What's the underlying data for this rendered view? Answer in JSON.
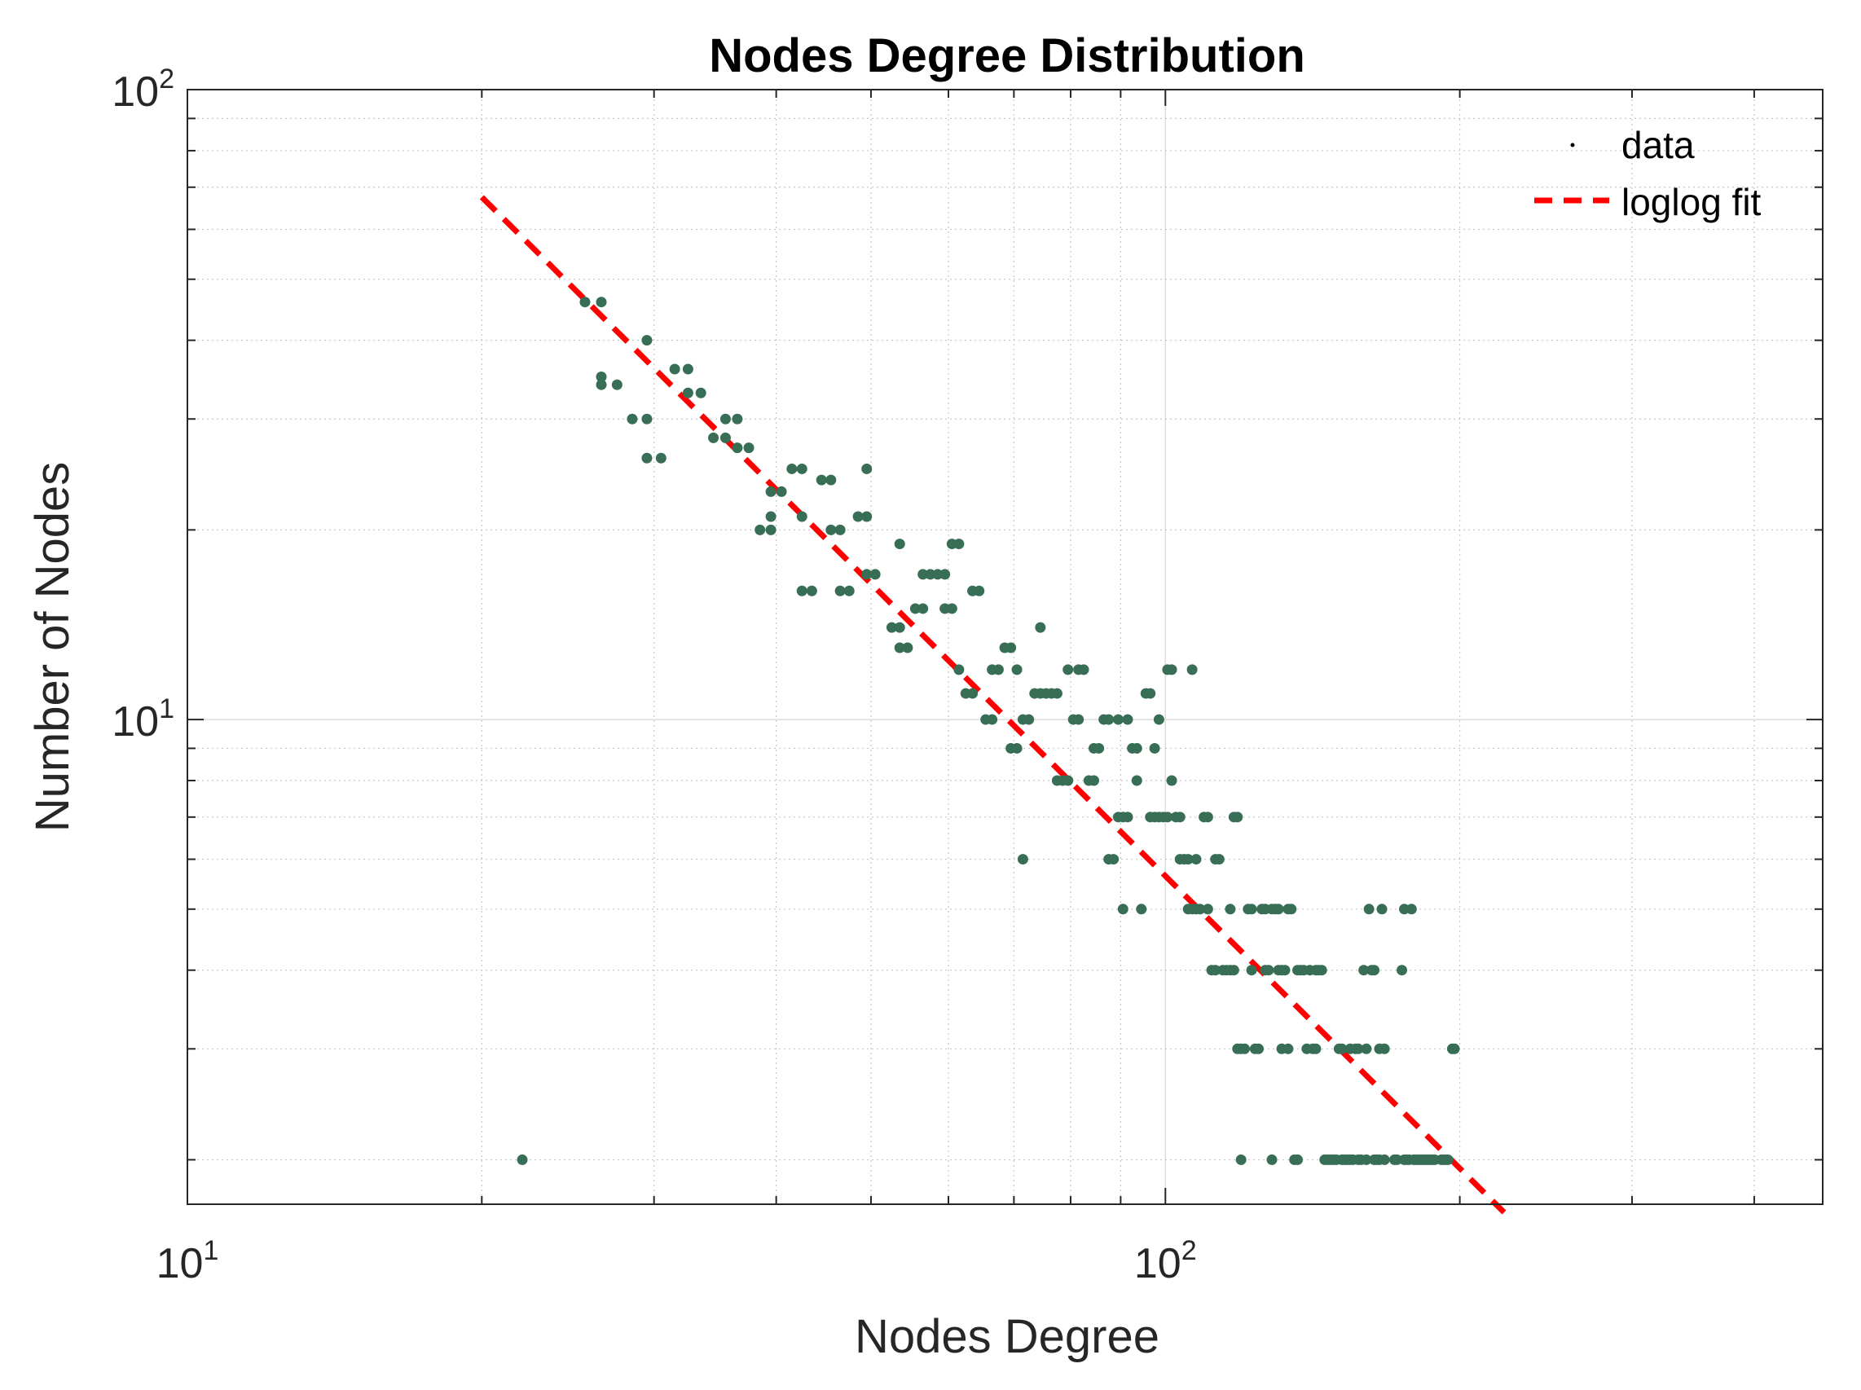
{
  "chart_data": {
    "type": "scatter",
    "title": "Nodes Degree Distribution",
    "xlabel": "Nodes Degree",
    "ylabel": "Number of Nodes",
    "xscale": "log",
    "yscale": "log",
    "xlim": [
      10,
      470
    ],
    "ylim": [
      1.7,
      100
    ],
    "grid": true,
    "legend_position": "top-right",
    "x_ticks": [
      {
        "base": "10",
        "exp": "1",
        "value": 10
      },
      {
        "base": "10",
        "exp": "2",
        "value": 100
      }
    ],
    "y_ticks": [
      {
        "base": "10",
        "exp": "1",
        "value": 10
      },
      {
        "base": "10",
        "exp": "2",
        "value": 100
      }
    ],
    "series": [
      {
        "name": "data",
        "color": "#376e55",
        "points": [
          [
            22,
            2
          ],
          [
            25.5,
            46
          ],
          [
            26.5,
            46
          ],
          [
            26.5,
            35
          ],
          [
            26.5,
            34
          ],
          [
            27.5,
            34
          ],
          [
            28.5,
            30
          ],
          [
            29.5,
            30
          ],
          [
            29.5,
            40
          ],
          [
            29.5,
            26
          ],
          [
            30.5,
            26
          ],
          [
            31.5,
            36
          ],
          [
            32.5,
            36
          ],
          [
            32.5,
            33
          ],
          [
            33.5,
            33
          ],
          [
            34.5,
            28
          ],
          [
            35.5,
            28
          ],
          [
            35.5,
            30
          ],
          [
            36.5,
            30
          ],
          [
            36.5,
            27
          ],
          [
            37.5,
            27
          ],
          [
            38.5,
            20
          ],
          [
            39.5,
            20
          ],
          [
            39.5,
            21
          ],
          [
            39.5,
            23
          ],
          [
            40.5,
            23
          ],
          [
            41.5,
            25
          ],
          [
            42.5,
            25
          ],
          [
            42.5,
            21
          ],
          [
            42.5,
            16
          ],
          [
            43.5,
            16
          ],
          [
            44.5,
            24
          ],
          [
            45.5,
            24
          ],
          [
            45.5,
            20
          ],
          [
            46.5,
            20
          ],
          [
            46.5,
            16
          ],
          [
            47.5,
            16
          ],
          [
            48.5,
            21
          ],
          [
            49.5,
            21
          ],
          [
            49.5,
            25
          ],
          [
            49.5,
            17
          ],
          [
            50.5,
            17
          ],
          [
            52.5,
            14
          ],
          [
            53.5,
            14
          ],
          [
            53.5,
            19
          ],
          [
            53.5,
            13
          ],
          [
            54.5,
            13
          ],
          [
            55.5,
            15
          ],
          [
            56.5,
            15
          ],
          [
            56.5,
            17
          ],
          [
            57.5,
            17
          ],
          [
            58.5,
            17
          ],
          [
            59.5,
            17
          ],
          [
            59.5,
            15
          ],
          [
            60.5,
            15
          ],
          [
            60.5,
            19
          ],
          [
            61.5,
            19
          ],
          [
            61.5,
            12
          ],
          [
            62.5,
            11
          ],
          [
            63.5,
            11
          ],
          [
            63.5,
            16
          ],
          [
            64.5,
            16
          ],
          [
            65.5,
            10
          ],
          [
            66.5,
            10
          ],
          [
            66.5,
            12
          ],
          [
            67.5,
            12
          ],
          [
            68.5,
            13
          ],
          [
            69.5,
            13
          ],
          [
            69.5,
            9
          ],
          [
            70.5,
            9
          ],
          [
            70.5,
            12
          ],
          [
            71.5,
            10
          ],
          [
            71.5,
            6
          ],
          [
            72.5,
            10
          ],
          [
            73.5,
            11
          ],
          [
            74.5,
            11
          ],
          [
            74.5,
            14
          ],
          [
            75.5,
            11
          ],
          [
            76.5,
            11
          ],
          [
            77.5,
            11
          ],
          [
            77.5,
            8
          ],
          [
            78.5,
            8
          ],
          [
            79.5,
            8
          ],
          [
            79.5,
            12
          ],
          [
            80.5,
            10
          ],
          [
            81.5,
            10
          ],
          [
            81.5,
            12
          ],
          [
            82.5,
            12
          ],
          [
            83.5,
            8
          ],
          [
            84.5,
            8
          ],
          [
            84.5,
            9
          ],
          [
            85.5,
            9
          ],
          [
            86.5,
            10
          ],
          [
            87.5,
            10
          ],
          [
            87.5,
            6
          ],
          [
            88.5,
            6
          ],
          [
            89.5,
            10
          ],
          [
            89.5,
            7
          ],
          [
            90.5,
            7
          ],
          [
            90.5,
            5
          ],
          [
            91.5,
            10
          ],
          [
            91.5,
            7
          ],
          [
            92.5,
            9
          ],
          [
            93.5,
            9
          ],
          [
            93.5,
            8
          ],
          [
            94.5,
            5
          ],
          [
            95.5,
            11
          ],
          [
            96.5,
            11
          ],
          [
            96.5,
            7
          ],
          [
            97.5,
            9
          ],
          [
            97.5,
            7
          ],
          [
            98.5,
            10
          ],
          [
            98.5,
            7
          ],
          [
            99.5,
            7
          ],
          [
            100.5,
            7
          ],
          [
            100.5,
            12
          ],
          [
            101.5,
            12
          ],
          [
            101.5,
            8
          ],
          [
            102.5,
            7
          ],
          [
            103.5,
            7
          ],
          [
            103.5,
            6
          ],
          [
            104.5,
            6
          ],
          [
            105.5,
            5
          ],
          [
            105.5,
            6
          ],
          [
            106.5,
            5
          ],
          [
            106.5,
            12
          ],
          [
            107.5,
            6
          ],
          [
            107.5,
            5
          ],
          [
            108.5,
            5
          ],
          [
            109.5,
            7
          ],
          [
            110.5,
            7
          ],
          [
            110.5,
            5
          ],
          [
            111.5,
            4
          ],
          [
            112.5,
            4
          ],
          [
            112.5,
            6
          ],
          [
            113.5,
            6
          ],
          [
            114.5,
            4
          ],
          [
            115.5,
            4
          ],
          [
            116.5,
            5
          ],
          [
            116.5,
            4
          ],
          [
            117.5,
            4
          ],
          [
            117.5,
            7
          ],
          [
            118.5,
            7
          ],
          [
            118.5,
            3
          ],
          [
            119.5,
            2
          ],
          [
            119.5,
            3
          ],
          [
            120.5,
            3
          ],
          [
            121.5,
            5
          ],
          [
            122.5,
            5
          ],
          [
            122.5,
            4
          ],
          [
            123.5,
            3
          ],
          [
            124.5,
            3
          ],
          [
            125.5,
            5
          ],
          [
            126.5,
            5
          ],
          [
            126.5,
            4
          ],
          [
            127.5,
            4
          ],
          [
            128.5,
            2
          ],
          [
            128.5,
            5
          ],
          [
            129.5,
            5
          ],
          [
            130.5,
            5
          ],
          [
            130.5,
            4
          ],
          [
            131.5,
            4
          ],
          [
            131.5,
            3
          ],
          [
            132.5,
            4
          ],
          [
            133.5,
            3
          ],
          [
            133.5,
            5
          ],
          [
            134.5,
            5
          ],
          [
            135.5,
            2
          ],
          [
            136.5,
            2
          ],
          [
            136.5,
            4
          ],
          [
            137.5,
            4
          ],
          [
            138.5,
            4
          ],
          [
            139.5,
            3
          ],
          [
            140.5,
            4
          ],
          [
            141.5,
            3
          ],
          [
            142.5,
            3
          ],
          [
            142.5,
            4
          ],
          [
            143.5,
            4
          ],
          [
            144.5,
            4
          ],
          [
            145.5,
            2
          ],
          [
            146.5,
            2
          ],
          [
            147.5,
            2
          ],
          [
            148.5,
            2
          ],
          [
            149.5,
            2
          ],
          [
            150.5,
            3
          ],
          [
            151.5,
            2
          ],
          [
            151.5,
            3
          ],
          [
            152.5,
            2
          ],
          [
            153.5,
            2
          ],
          [
            154.5,
            2
          ],
          [
            154.5,
            3
          ],
          [
            155.5,
            2
          ],
          [
            156.5,
            3
          ],
          [
            157.5,
            3
          ],
          [
            157.5,
            2
          ],
          [
            158.5,
            2
          ],
          [
            159.5,
            4
          ],
          [
            160.5,
            3
          ],
          [
            160.5,
            2
          ],
          [
            161.5,
            5
          ],
          [
            162.5,
            4
          ],
          [
            163.5,
            4
          ],
          [
            163.5,
            2
          ],
          [
            164.5,
            2
          ],
          [
            165.5,
            2
          ],
          [
            165.5,
            3
          ],
          [
            166.5,
            5
          ],
          [
            167.5,
            3
          ],
          [
            167.5,
            2
          ],
          [
            171.5,
            2
          ],
          [
            172.5,
            2
          ],
          [
            174.5,
            4
          ],
          [
            175.5,
            5
          ],
          [
            175.5,
            2
          ],
          [
            176.5,
            2
          ],
          [
            177.5,
            2
          ],
          [
            178.5,
            5
          ],
          [
            179.5,
            2
          ],
          [
            180.5,
            2
          ],
          [
            181.5,
            2
          ],
          [
            182.5,
            2
          ],
          [
            183.5,
            2
          ],
          [
            184.5,
            2
          ],
          [
            185.5,
            2
          ],
          [
            186.5,
            2
          ],
          [
            187.5,
            2
          ],
          [
            188.5,
            2
          ],
          [
            191.5,
            2
          ],
          [
            192.5,
            2
          ],
          [
            193.5,
            2
          ],
          [
            194.5,
            2
          ],
          [
            196.5,
            3
          ],
          [
            197.5,
            3
          ]
        ]
      },
      {
        "name": "loglog fit",
        "color": "#ff0000",
        "style": "dashed",
        "x": [
          20,
          222
        ],
        "y": [
          67.5,
          1.65
        ]
      }
    ]
  }
}
